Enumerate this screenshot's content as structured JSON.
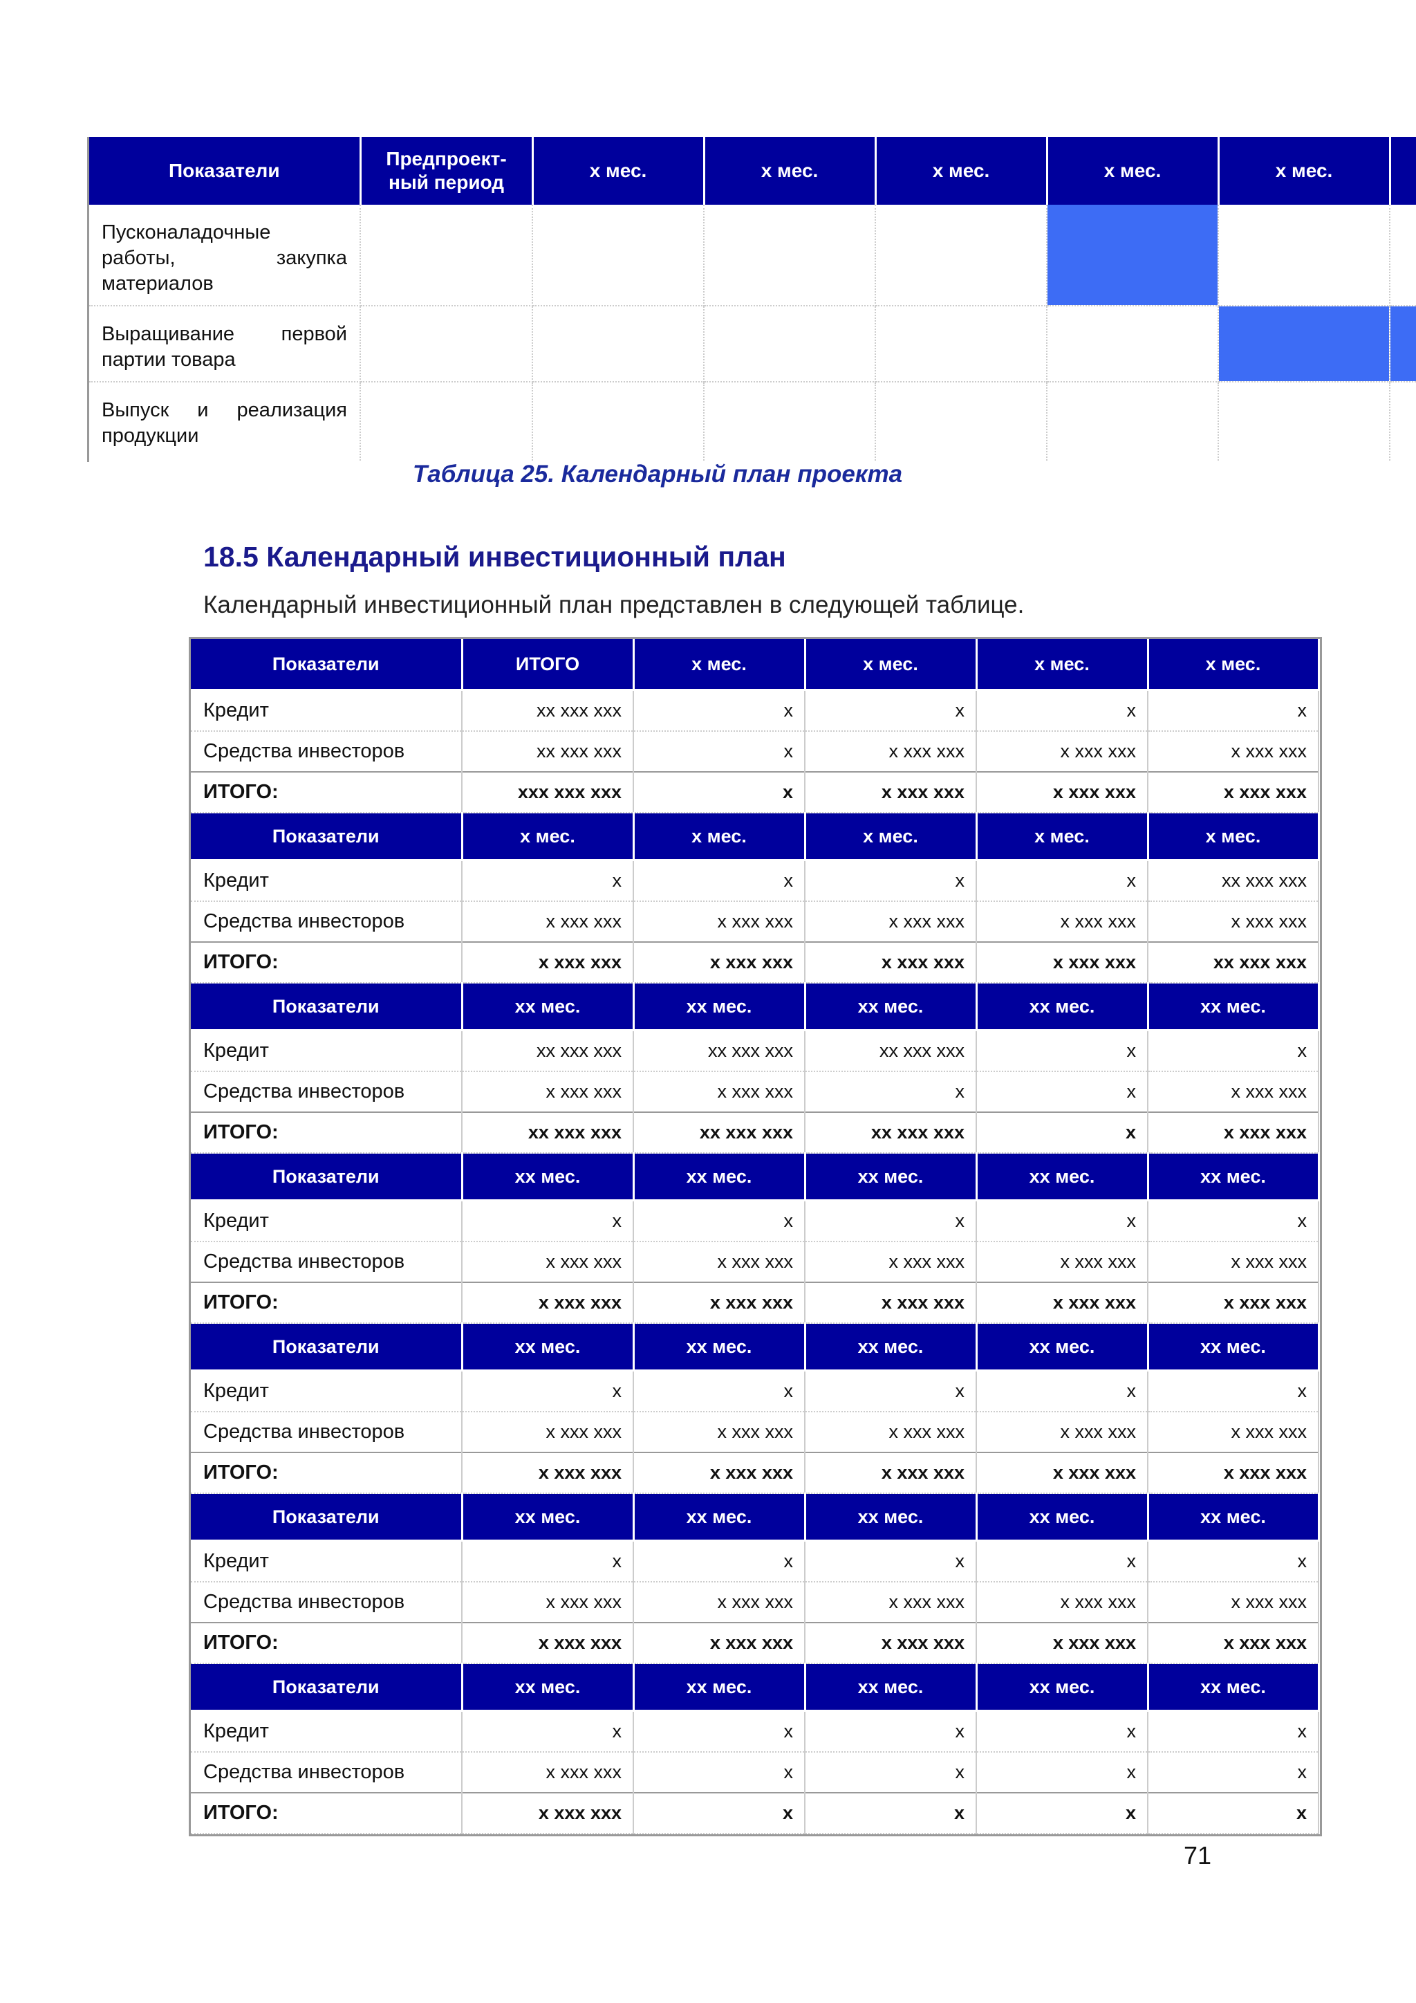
{
  "gantt": {
    "headers": [
      "Показатели",
      "Предпроект-\nный период",
      "x мес.",
      "x мес.",
      "x мес.",
      "x мес.",
      "x мес."
    ],
    "rows": [
      {
        "label": "Пусконаладочные работы, закупка материалов",
        "highlight": [
          5
        ]
      },
      {
        "label": "Выращивание первой партии товара",
        "highlight": [
          6,
          7
        ]
      },
      {
        "label": "Выпуск и реализация продукции",
        "highlight": []
      }
    ],
    "highlight_color": "#3d6cf5"
  },
  "caption": "Таблица 25. Календарный план проекта",
  "section": {
    "title": "18.5 Календарный инвестиционный план",
    "text": "Календарный инвестиционный план представлен в следующей таблице."
  },
  "invest": {
    "blocks": [
      {
        "header": [
          "Показатели",
          "ИТОГО",
          "x мес.",
          "x мес.",
          "x мес.",
          "x мес."
        ],
        "rows": [
          [
            "Кредит",
            "xx xxx xxx",
            "x",
            "x",
            "x",
            "x"
          ],
          [
            "Средства инвесторов",
            "xx xxx xxx",
            "x",
            "x xxx xxx",
            "x xxx xxx",
            "x xxx xxx"
          ],
          [
            "ИТОГО:",
            "xxx xxx xxx",
            "x",
            "x xxx xxx",
            "x xxx xxx",
            "x xxx xxx"
          ]
        ]
      },
      {
        "header": [
          "Показатели",
          "x мес.",
          "x мес.",
          "x мес.",
          "x мес.",
          "x мес."
        ],
        "rows": [
          [
            "Кредит",
            "x",
            "x",
            "x",
            "x",
            "xx xxx xxx"
          ],
          [
            "Средства инвесторов",
            "x xxx xxx",
            "x xxx xxx",
            "x xxx xxx",
            "x xxx xxx",
            "x xxx xxx"
          ],
          [
            "ИТОГО:",
            "x xxx xxx",
            "x xxx xxx",
            "x xxx xxx",
            "x xxx xxx",
            "xx xxx xxx"
          ]
        ]
      },
      {
        "header": [
          "Показатели",
          "xx мес.",
          "xx мес.",
          "xx мес.",
          "xx мес.",
          "xx мес."
        ],
        "rows": [
          [
            "Кредит",
            "xx xxx xxx",
            "xx xxx xxx",
            "xx xxx xxx",
            "x",
            "x"
          ],
          [
            "Средства инвесторов",
            "x xxx xxx",
            "x xxx xxx",
            "x",
            "x",
            "x xxx xxx"
          ],
          [
            "ИТОГО:",
            "xx xxx xxx",
            "xx xxx xxx",
            "xx xxx xxx",
            "x",
            "x xxx xxx"
          ]
        ]
      },
      {
        "header": [
          "Показатели",
          "xx мес.",
          "xx мес.",
          "xx мес.",
          "xx мес.",
          "xx мес."
        ],
        "rows": [
          [
            "Кредит",
            "x",
            "x",
            "x",
            "x",
            "x"
          ],
          [
            "Средства инвесторов",
            "x xxx xxx",
            "x xxx xxx",
            "x xxx xxx",
            "x xxx xxx",
            "x xxx xxx"
          ],
          [
            "ИТОГО:",
            "x xxx xxx",
            "x xxx xxx",
            "x xxx xxx",
            "x xxx xxx",
            "x xxx xxx"
          ]
        ]
      },
      {
        "header": [
          "Показатели",
          "xx мес.",
          "xx мес.",
          "xx мес.",
          "xx мес.",
          "xx мес."
        ],
        "rows": [
          [
            "Кредит",
            "x",
            "x",
            "x",
            "x",
            "x"
          ],
          [
            "Средства инвесторов",
            "x xxx xxx",
            "x xxx xxx",
            "x xxx xxx",
            "x xxx xxx",
            "x xxx xxx"
          ],
          [
            "ИТОГО:",
            "x xxx xxx",
            "x xxx xxx",
            "x xxx xxx",
            "x xxx xxx",
            "x xxx xxx"
          ]
        ]
      },
      {
        "header": [
          "Показатели",
          "xx мес.",
          "xx мес.",
          "xx мес.",
          "xx мес.",
          "xx мес."
        ],
        "rows": [
          [
            "Кредит",
            "x",
            "x",
            "x",
            "x",
            "x"
          ],
          [
            "Средства инвесторов",
            "x xxx xxx",
            "x xxx xxx",
            "x xxx xxx",
            "x xxx xxx",
            "x xxx xxx"
          ],
          [
            "ИТОГО:",
            "x xxx xxx",
            "x xxx xxx",
            "x xxx xxx",
            "x xxx xxx",
            "x xxx xxx"
          ]
        ]
      },
      {
        "header": [
          "Показатели",
          "xx мес.",
          "xx мес.",
          "xx мес.",
          "xx мес.",
          "xx мес."
        ],
        "rows": [
          [
            "Кредит",
            "x",
            "x",
            "x",
            "x",
            "x"
          ],
          [
            "Средства инвесторов",
            "x xxx xxx",
            "x",
            "x",
            "x",
            "x"
          ],
          [
            "ИТОГО:",
            "x xxx xxx",
            "x",
            "x",
            "x",
            "x"
          ]
        ]
      }
    ]
  },
  "page_number": "71"
}
